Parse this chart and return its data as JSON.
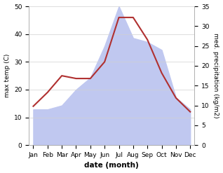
{
  "months": [
    "Jan",
    "Feb",
    "Mar",
    "Apr",
    "May",
    "Jun",
    "Jul",
    "Aug",
    "Sep",
    "Oct",
    "Nov",
    "Dec"
  ],
  "temp_max": [
    14,
    19,
    25,
    24,
    24,
    30,
    46,
    46,
    38,
    26,
    17,
    12
  ],
  "precipitation": [
    9,
    9,
    10,
    14,
    17,
    25,
    35,
    27,
    26,
    24,
    12,
    9
  ],
  "temp_color": "#b03030",
  "precip_fill_color": "#c0c8f0",
  "xlabel": "date (month)",
  "ylabel_left": "max temp (C)",
  "ylabel_right": "med. precipitation (kg/m2)",
  "temp_ylim": [
    0,
    50
  ],
  "precip_ylim": [
    0,
    35
  ],
  "temp_yticks": [
    0,
    10,
    20,
    30,
    40,
    50
  ],
  "precip_yticks": [
    0,
    5,
    10,
    15,
    20,
    25,
    30,
    35
  ],
  "grid_color": "#d0d0d0",
  "spine_color": "#aaaaaa",
  "tick_fontsize": 6.5,
  "label_fontsize": 6.5,
  "xlabel_fontsize": 7.5
}
